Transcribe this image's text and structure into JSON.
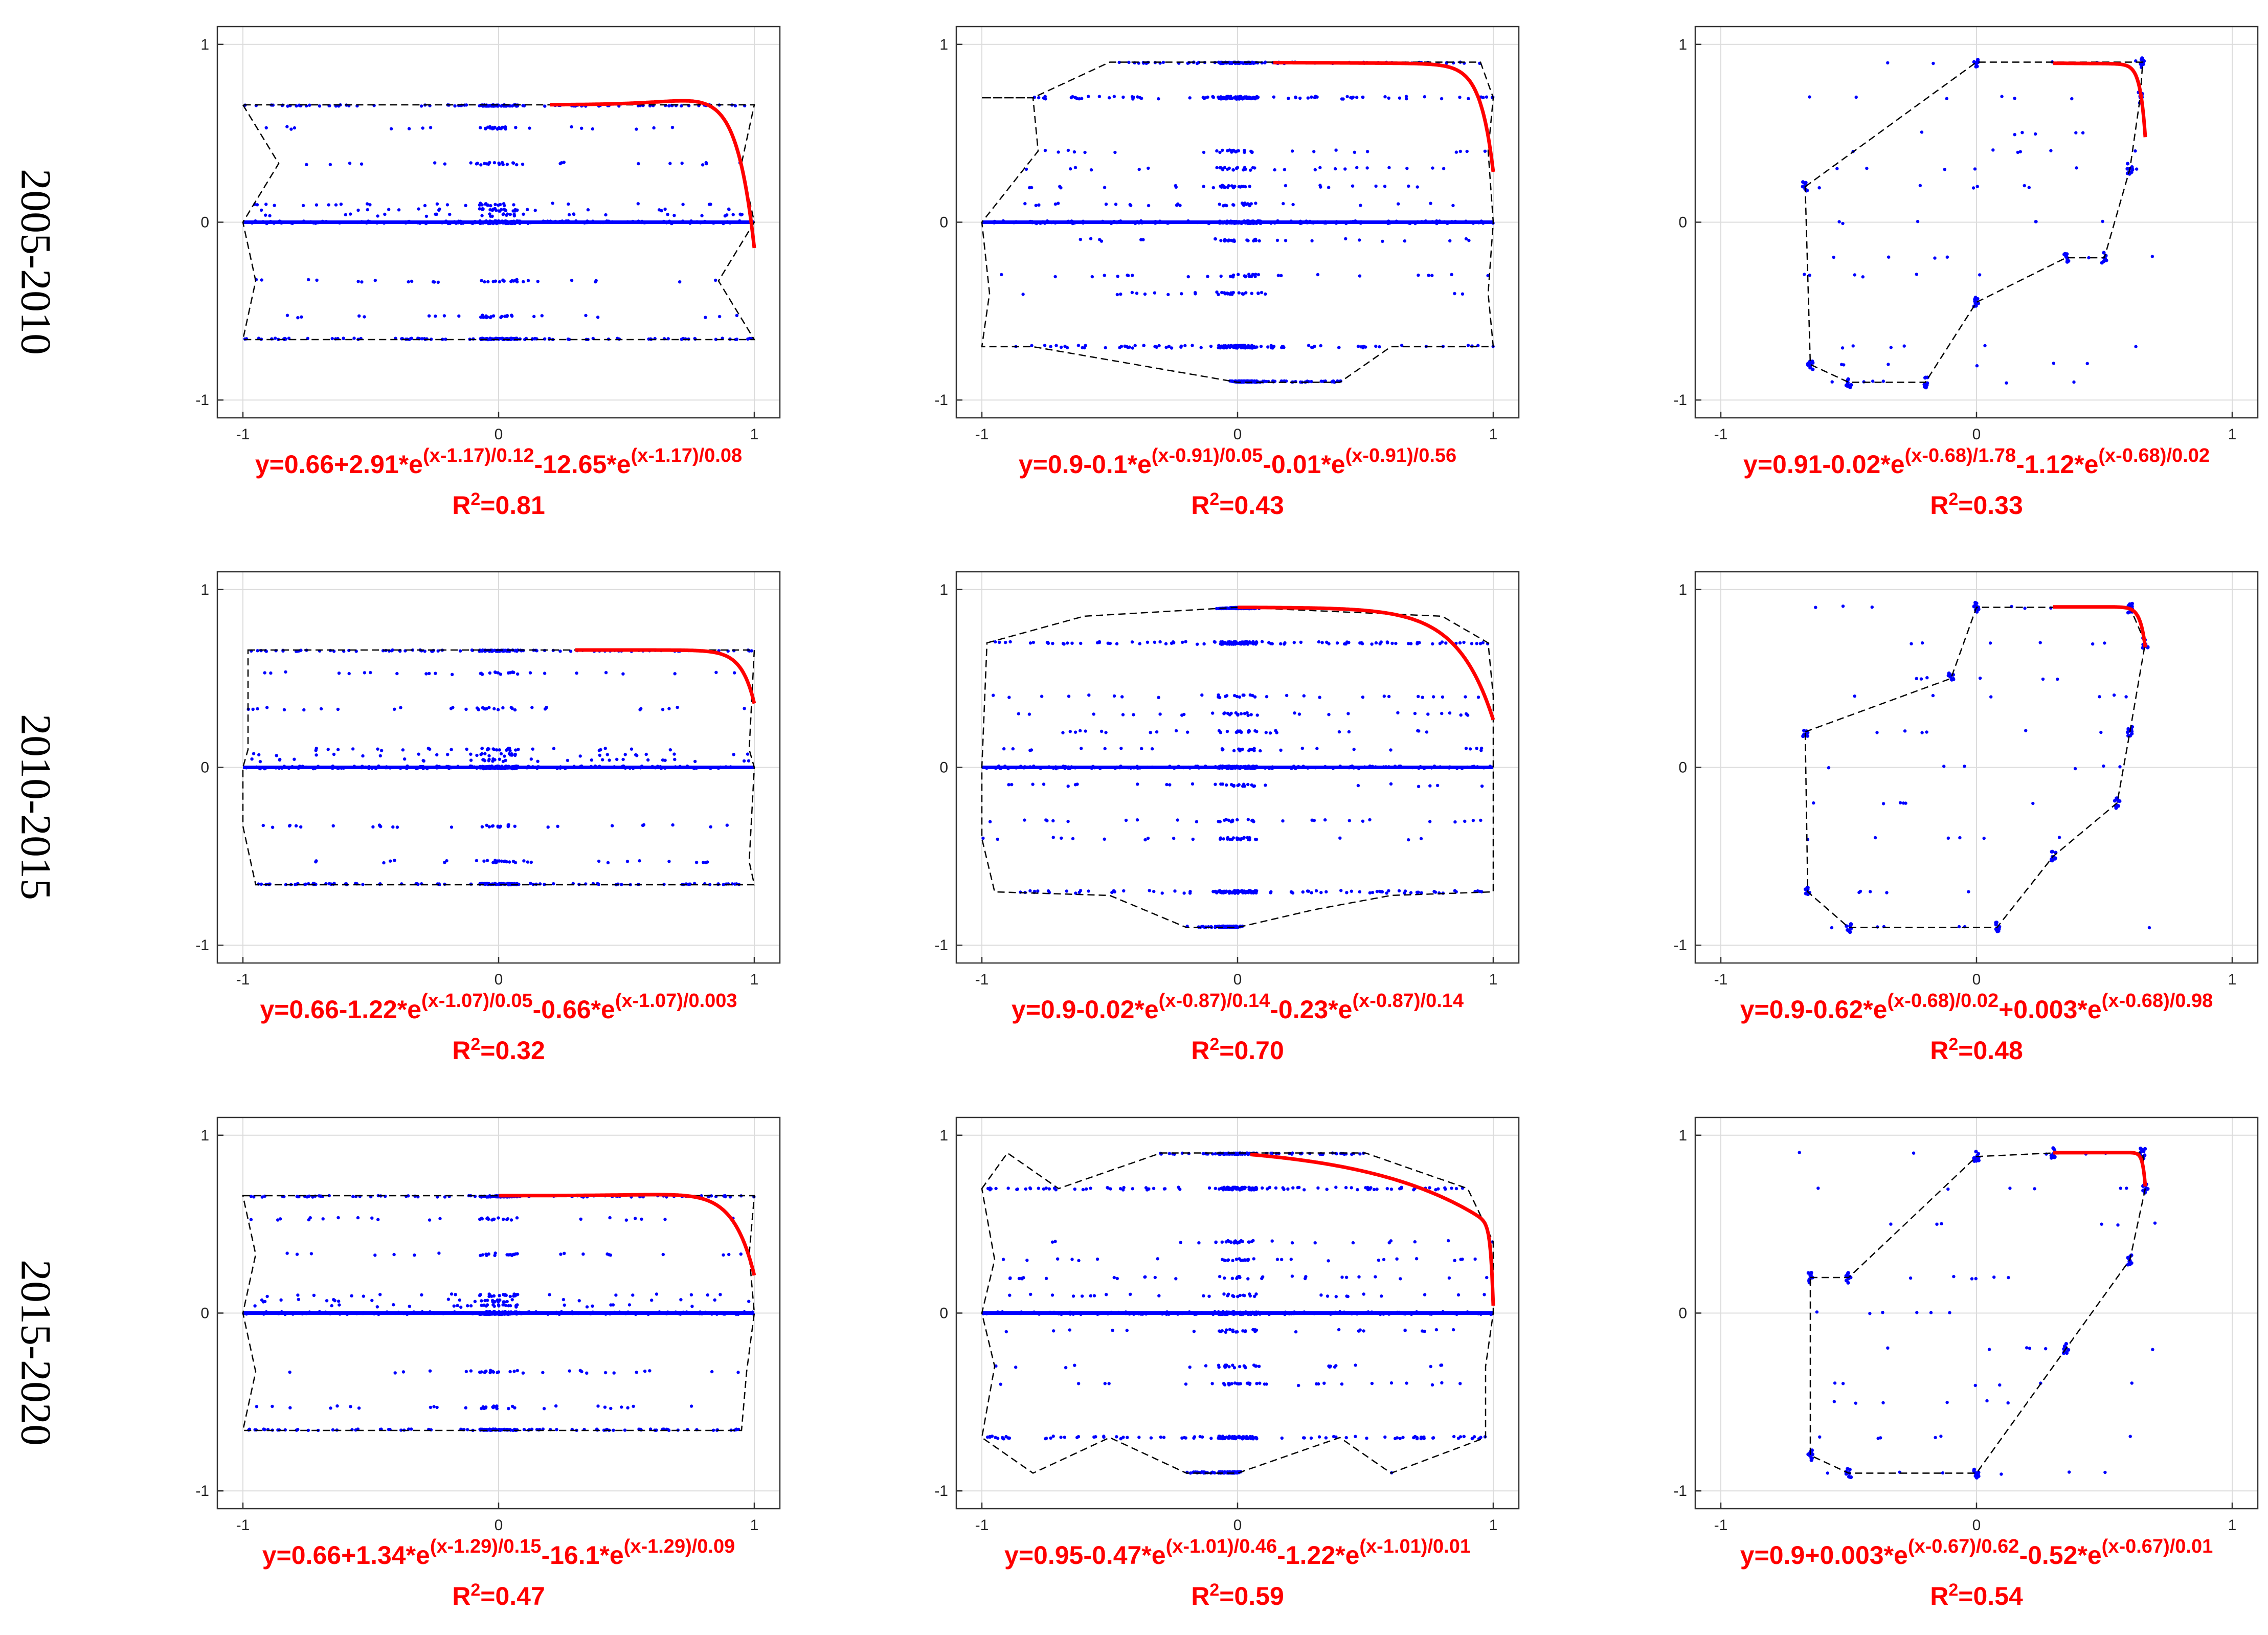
{
  "figure": {
    "row_labels": [
      "2005-2010",
      "2010-2015",
      "2015-2020"
    ],
    "colors": {
      "points": "#0000ff",
      "fit": "#ff0000",
      "hull": "#000000",
      "grid": "#dcdcdc",
      "axes": "#333333"
    }
  },
  "chart_data": [
    {
      "type": "scatter",
      "row": 0,
      "col": 0,
      "period": "2005-2010",
      "xlim": [
        -1.1,
        1.1
      ],
      "ylim": [
        -1.1,
        1.1
      ],
      "xticks": [
        "-1",
        "0",
        "1"
      ],
      "yticks": [
        "1",
        "0",
        "-1"
      ],
      "grid": true,
      "levels": [
        0.66,
        0.53,
        0.33,
        0.1,
        0.07,
        0.04,
        0.0,
        -0.33,
        -0.53,
        -0.66
      ],
      "hull": [
        [
          -1,
          0.66
        ],
        [
          -0.86,
          0.33
        ],
        [
          -1,
          0
        ],
        [
          -0.95,
          -0.33
        ],
        [
          -1,
          -0.66
        ],
        [
          1,
          -0.66
        ],
        [
          0.86,
          -0.33
        ],
        [
          1,
          0
        ],
        [
          0.95,
          0.33
        ],
        [
          1,
          0.66
        ]
      ],
      "fit": {
        "c": 0.66,
        "a1": 2.91,
        "t1": 0.12,
        "a2": -12.65,
        "t2": 0.08,
        "x0": 1.17,
        "x_range": [
          0.2,
          1.0
        ]
      },
      "equation": {
        "lead": "y=0.66+2.91*e",
        "e1": "(x-1.17)/0.12",
        "mid": "-12.65*e",
        "e2": "(x-1.17)/0.08"
      },
      "r2": "0.81"
    },
    {
      "type": "scatter",
      "row": 0,
      "col": 1,
      "period": "2005-2010",
      "xlim": [
        -1.1,
        1.1
      ],
      "ylim": [
        -1.1,
        1.1
      ],
      "xticks": [
        "-1",
        "0",
        "1"
      ],
      "yticks": [
        "1",
        "0",
        "-1"
      ],
      "grid": true,
      "levels": [
        0.9,
        0.7,
        0.4,
        0.3,
        0.2,
        0.1,
        0.0,
        -0.1,
        -0.3,
        -0.4,
        -0.7,
        -0.9
      ],
      "hull": [
        [
          -1,
          0.7
        ],
        [
          -0.8,
          0.7
        ],
        [
          -0.5,
          0.9
        ],
        [
          -0.3,
          0.9
        ],
        [
          0,
          0.9
        ],
        [
          0.2,
          0.9
        ],
        [
          0.5,
          0.9
        ],
        [
          0.95,
          0.9
        ],
        [
          1,
          0.7
        ],
        [
          0.98,
          0.4
        ],
        [
          1,
          0
        ],
        [
          0.98,
          -0.4
        ],
        [
          1,
          -0.7
        ],
        [
          0.6,
          -0.7
        ],
        [
          0.4,
          -0.9
        ],
        [
          0,
          -0.9
        ],
        [
          -0.4,
          -0.8
        ],
        [
          -0.8,
          -0.7
        ],
        [
          -1,
          -0.7
        ],
        [
          -0.97,
          -0.4
        ],
        [
          -1,
          0
        ],
        [
          -0.78,
          0.4
        ],
        [
          -0.8,
          0.7
        ]
      ],
      "fit": {
        "c": 0.9,
        "a1": -0.1,
        "t1": 0.05,
        "a2": -0.01,
        "t2": 0.56,
        "x0": 0.91,
        "x_range": [
          0.14,
          1.0
        ]
      },
      "equation": {
        "lead": "y=0.9-0.1*e",
        "e1": "(x-0.91)/0.05",
        "mid": "-0.01*e",
        "e2": "(x-0.91)/0.56"
      },
      "r2": "0.43"
    },
    {
      "type": "scatter",
      "row": 0,
      "col": 2,
      "period": "2005-2010",
      "xlim": [
        -1.1,
        1.1
      ],
      "ylim": [
        -1.1,
        1.1
      ],
      "xticks": [
        "-1",
        "0",
        "1"
      ],
      "yticks": [
        "1",
        "0",
        "-1"
      ],
      "grid": true,
      "levels": [
        0.9,
        0.7,
        0.5,
        0.4,
        0.3,
        0.2,
        0.0,
        -0.2,
        -0.3,
        -0.7,
        -0.8,
        -0.9
      ],
      "hull": [
        [
          -0.67,
          0.2
        ],
        [
          0,
          0.9
        ],
        [
          0.65,
          0.9
        ],
        [
          0.64,
          0.7
        ],
        [
          0.6,
          0.3
        ],
        [
          0.5,
          -0.2
        ],
        [
          0.35,
          -0.2
        ],
        [
          0,
          -0.45
        ],
        [
          -0.2,
          -0.9
        ],
        [
          -0.5,
          -0.9
        ],
        [
          -0.65,
          -0.8
        ]
      ],
      "fit": {
        "c": 0.91,
        "a1": -0.02,
        "t1": 1.78,
        "a2": -1.12,
        "t2": 0.02,
        "x0": 0.68,
        "x_range": [
          0.3,
          0.66
        ]
      },
      "equation": {
        "lead": "y=0.91-0.02*e",
        "e1": "(x-0.68)/1.78",
        "mid": "-1.12*e",
        "e2": "(x-0.68)/0.02"
      },
      "r2": "0.33"
    },
    {
      "type": "scatter",
      "row": 1,
      "col": 0,
      "period": "2010-2015",
      "xlim": [
        -1.1,
        1.1
      ],
      "ylim": [
        -1.1,
        1.1
      ],
      "xticks": [
        "-1",
        "0",
        "1"
      ],
      "yticks": [
        "1",
        "0",
        "-1"
      ],
      "grid": true,
      "levels": [
        0.66,
        0.53,
        0.33,
        0.1,
        0.07,
        0.04,
        0.0,
        -0.33,
        -0.53,
        -0.66
      ],
      "hull": [
        [
          -0.98,
          0.66
        ],
        [
          1,
          0.66
        ],
        [
          0.98,
          0.1
        ],
        [
          1,
          0
        ],
        [
          0.98,
          -0.53
        ],
        [
          1,
          -0.66
        ],
        [
          -0.95,
          -0.66
        ],
        [
          -1,
          -0.33
        ],
        [
          -1,
          0
        ],
        [
          -0.98,
          0.1
        ]
      ],
      "fit": {
        "c": 0.66,
        "a1": -1.22,
        "t1": 0.05,
        "a2": -0.66,
        "t2": 0.003,
        "x0": 1.07,
        "x_range": [
          0.3,
          1.0
        ]
      },
      "equation": {
        "lead": "y=0.66-1.22*e",
        "e1": "(x-1.07)/0.05",
        "mid": "-0.66*e",
        "e2": "(x-1.07)/0.003"
      },
      "r2": "0.32"
    },
    {
      "type": "scatter",
      "row": 1,
      "col": 1,
      "period": "2010-2015",
      "xlim": [
        -1.1,
        1.1
      ],
      "ylim": [
        -1.1,
        1.1
      ],
      "xticks": [
        "-1",
        "0",
        "1"
      ],
      "yticks": [
        "1",
        "0",
        "-1"
      ],
      "grid": true,
      "levels": [
        0.9,
        0.7,
        0.4,
        0.3,
        0.2,
        0.1,
        0.0,
        -0.1,
        -0.3,
        -0.4,
        -0.7,
        -0.9
      ],
      "hull": [
        [
          -0.98,
          0.7
        ],
        [
          -0.6,
          0.85
        ],
        [
          0,
          0.9
        ],
        [
          0.8,
          0.85
        ],
        [
          0.98,
          0.7
        ],
        [
          1,
          0.4
        ],
        [
          1,
          0
        ],
        [
          1,
          -0.7
        ],
        [
          0.6,
          -0.72
        ],
        [
          0.3,
          -0.8
        ],
        [
          0,
          -0.9
        ],
        [
          -0.2,
          -0.9
        ],
        [
          -0.5,
          -0.72
        ],
        [
          -0.95,
          -0.7
        ],
        [
          -1,
          -0.4
        ],
        [
          -1,
          0
        ]
      ],
      "fit": {
        "c": 0.9,
        "a1": -0.02,
        "t1": 0.14,
        "a2": -0.23,
        "t2": 0.14,
        "x0": 0.87,
        "x_range": [
          0.0,
          1.0
        ]
      },
      "equation": {
        "lead": "y=0.9-0.02*e",
        "e1": "(x-0.87)/0.14",
        "mid": "-0.23*e",
        "e2": "(x-0.87)/0.14"
      },
      "r2": "0.70"
    },
    {
      "type": "scatter",
      "row": 1,
      "col": 2,
      "period": "2010-2015",
      "xlim": [
        -1.1,
        1.1
      ],
      "ylim": [
        -1.1,
        1.1
      ],
      "xticks": [
        "-1",
        "0",
        "1"
      ],
      "yticks": [
        "1",
        "0",
        "-1"
      ],
      "grid": true,
      "levels": [
        0.9,
        0.7,
        0.5,
        0.4,
        0.2,
        0.0,
        -0.2,
        -0.4,
        -0.7,
        -0.9
      ],
      "hull": [
        [
          -0.67,
          0.2
        ],
        [
          -0.1,
          0.5
        ],
        [
          0,
          0.9
        ],
        [
          0.6,
          0.9
        ],
        [
          0.66,
          0.7
        ],
        [
          0.6,
          0.2
        ],
        [
          0.55,
          -0.2
        ],
        [
          0.3,
          -0.5
        ],
        [
          0.08,
          -0.9
        ],
        [
          -0.5,
          -0.9
        ],
        [
          -0.66,
          -0.7
        ]
      ],
      "fit": {
        "c": 0.9,
        "a1": -0.62,
        "t1": 0.02,
        "a2": 0.003,
        "t2": 0.98,
        "x0": 0.68,
        "x_range": [
          0.3,
          0.66
        ]
      },
      "equation": {
        "lead": "y=0.9-0.62*e",
        "e1": "(x-0.68)/0.02",
        "mid": "+0.003*e",
        "e2": "(x-0.68)/0.98"
      },
      "r2": "0.48"
    },
    {
      "type": "scatter",
      "row": 2,
      "col": 0,
      "period": "2015-2020",
      "xlim": [
        -1.1,
        1.1
      ],
      "ylim": [
        -1.1,
        1.1
      ],
      "xticks": [
        "-1",
        "0",
        "1"
      ],
      "yticks": [
        "1",
        "0",
        "-1"
      ],
      "grid": true,
      "levels": [
        0.66,
        0.53,
        0.33,
        0.1,
        0.07,
        0.04,
        0.0,
        -0.33,
        -0.53,
        -0.66
      ],
      "hull": [
        [
          -1,
          0.66
        ],
        [
          1,
          0.66
        ],
        [
          0.98,
          0.33
        ],
        [
          1,
          0
        ],
        [
          0.97,
          -0.33
        ],
        [
          0.95,
          -0.66
        ],
        [
          -1,
          -0.66
        ],
        [
          -0.95,
          -0.33
        ],
        [
          -1,
          0
        ],
        [
          -0.95,
          0.33
        ]
      ],
      "fit": {
        "c": 0.66,
        "a1": 1.34,
        "t1": 0.15,
        "a2": -16.1,
        "t2": 0.09,
        "x0": 1.29,
        "x_range": [
          0.0,
          1.0
        ]
      },
      "equation": {
        "lead": "y=0.66+1.34*e",
        "e1": "(x-1.29)/0.15",
        "mid": "-16.1*e",
        "e2": "(x-1.29)/0.09"
      },
      "r2": "0.47"
    },
    {
      "type": "scatter",
      "row": 2,
      "col": 1,
      "period": "2015-2020",
      "xlim": [
        -1.1,
        1.1
      ],
      "ylim": [
        -1.1,
        1.1
      ],
      "xticks": [
        "-1",
        "0",
        "1"
      ],
      "yticks": [
        "1",
        "0",
        "-1"
      ],
      "grid": true,
      "levels": [
        0.9,
        0.7,
        0.4,
        0.3,
        0.2,
        0.1,
        0.0,
        -0.1,
        -0.3,
        -0.4,
        -0.7,
        -0.9
      ],
      "hull": [
        [
          -1,
          0.7
        ],
        [
          -0.9,
          0.9
        ],
        [
          -0.7,
          0.7
        ],
        [
          -0.3,
          0.9
        ],
        [
          0,
          0.9
        ],
        [
          0.5,
          0.9
        ],
        [
          0.9,
          0.7
        ],
        [
          1,
          0.4
        ],
        [
          1,
          0
        ],
        [
          0.97,
          -0.3
        ],
        [
          0.97,
          -0.7
        ],
        [
          0.6,
          -0.9
        ],
        [
          0.4,
          -0.7
        ],
        [
          0,
          -0.9
        ],
        [
          -0.2,
          -0.9
        ],
        [
          -0.5,
          -0.7
        ],
        [
          -0.8,
          -0.9
        ],
        [
          -1,
          -0.7
        ],
        [
          -0.95,
          -0.3
        ],
        [
          -1,
          0
        ],
        [
          -0.95,
          0.3
        ]
      ],
      "fit": {
        "c": 0.95,
        "a1": -0.47,
        "t1": 0.46,
        "a2": -1.22,
        "t2": 0.01,
        "x0": 1.01,
        "x_range": [
          0.05,
          1.0
        ]
      },
      "equation": {
        "lead": "y=0.95-0.47*e",
        "e1": "(x-1.01)/0.46",
        "mid": "-1.22*e",
        "e2": "(x-1.01)/0.01"
      },
      "r2": "0.59"
    },
    {
      "type": "scatter",
      "row": 2,
      "col": 2,
      "period": "2015-2020",
      "xlim": [
        -1.1,
        1.1
      ],
      "ylim": [
        -1.1,
        1.1
      ],
      "xticks": [
        "-1",
        "0",
        "1"
      ],
      "yticks": [
        "1",
        "0",
        "-1"
      ],
      "grid": true,
      "levels": [
        0.9,
        0.7,
        0.5,
        0.2,
        0.0,
        -0.2,
        -0.4,
        -0.5,
        -0.7,
        -0.9
      ],
      "hull": [
        [
          -0.65,
          0.2
        ],
        [
          -0.5,
          0.2
        ],
        [
          0,
          0.88
        ],
        [
          0.3,
          0.9
        ],
        [
          0.65,
          0.9
        ],
        [
          0.66,
          0.7
        ],
        [
          0.6,
          0.3
        ],
        [
          0.35,
          -0.2
        ],
        [
          0,
          -0.9
        ],
        [
          -0.5,
          -0.9
        ],
        [
          -0.65,
          -0.8
        ]
      ],
      "fit": {
        "c": 0.9,
        "a1": 0.003,
        "t1": 0.62,
        "a2": -0.52,
        "t2": 0.01,
        "x0": 0.67,
        "x_range": [
          0.3,
          0.66
        ]
      },
      "equation": {
        "lead": "y=0.9+0.003*e",
        "e1": "(x-0.67)/0.62",
        "mid": "-0.52*e",
        "e2": "(x-0.67)/0.01"
      },
      "r2": "0.54"
    }
  ]
}
